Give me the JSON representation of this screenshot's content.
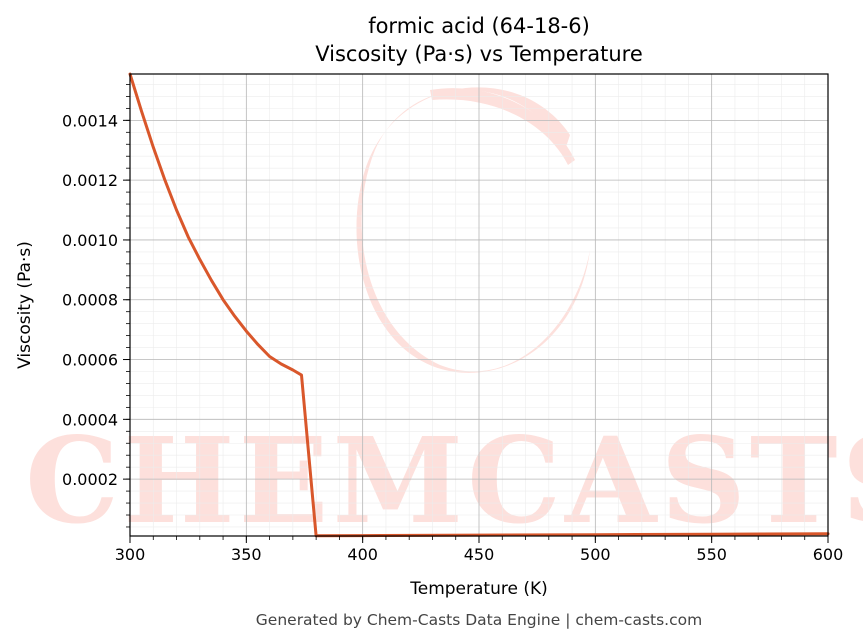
{
  "chart_data": {
    "type": "line",
    "title": "formic acid (64-18-6)",
    "subtitle": "Viscosity (Pa·s) vs Temperature",
    "xlabel": "Temperature (K)",
    "ylabel": "Viscosity (Pa·s)",
    "xlim": [
      300,
      600
    ],
    "ylim": [
      9.8e-06,
      0.001555
    ],
    "x_ticks": [
      300,
      350,
      400,
      450,
      500,
      550,
      600
    ],
    "x_tick_labels": [
      "300",
      "350",
      "400",
      "450",
      "500",
      "550",
      "600"
    ],
    "y_ticks": [
      0.0002,
      0.0004,
      0.0006,
      0.0008,
      0.001,
      0.0012,
      0.0014
    ],
    "y_tick_labels": [
      "0.0002",
      "0.0004",
      "0.0006",
      "0.0008",
      "0.0010",
      "0.0012",
      "0.0014"
    ],
    "grid": true,
    "series": [
      {
        "color": "#d9572b",
        "x": [
          300,
          305,
          310,
          315,
          320,
          325,
          330,
          335,
          340,
          345,
          350,
          355,
          360,
          365,
          370,
          373.7,
          380,
          400,
          450,
          500,
          550,
          600
        ],
        "y": [
          0.001555,
          0.00143,
          0.00131,
          0.0012,
          0.0011,
          0.00101,
          0.000935,
          0.000865,
          0.0008,
          0.000745,
          0.000695,
          0.00065,
          0.00061,
          0.000585,
          0.000565,
          0.000548,
          1.05e-05,
          1.12e-05,
          1.27e-05,
          1.42e-05,
          1.57e-05,
          1.72e-05
        ]
      }
    ]
  },
  "watermark": "CHEMCASTS",
  "footer": "Generated by Chem-Casts Data Engine | chem-casts.com"
}
